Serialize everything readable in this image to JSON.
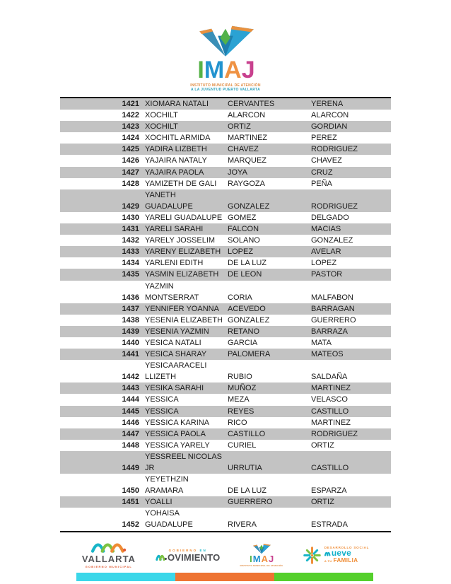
{
  "logo": {
    "letters": [
      {
        "char": "I",
        "color": "#56b247"
      },
      {
        "char": "M",
        "color": "#2293cf"
      },
      {
        "char": "A",
        "color": "#ef9243"
      },
      {
        "char": "J",
        "color": "#c8418e"
      }
    ],
    "caption_line1": "INSTITUTO MUNICIPAL DE ATENCIÓN",
    "caption_line2": "A LA JUVENTUD PUERTO VALLARTA"
  },
  "table": {
    "rows": [
      {
        "id": "1421",
        "name": "XIOMARA NATALI",
        "paternal": "CERVANTES",
        "maternal": "YERENA"
      },
      {
        "id": "1422",
        "name": "XOCHILT",
        "paternal": "ALARCON",
        "maternal": "ALARCON"
      },
      {
        "id": "1423",
        "name": "XOCHILT",
        "paternal": "ORTIZ",
        "maternal": "GORDIAN"
      },
      {
        "id": "1424",
        "name": "XOCHITL ARMIDA",
        "paternal": "MARTINEZ",
        "maternal": "PEREZ"
      },
      {
        "id": "1425",
        "name": "YADIRA LIZBETH",
        "paternal": "CHAVEZ",
        "maternal": "RODRIGUEZ"
      },
      {
        "id": "1426",
        "name": "YAJAIRA NATALY",
        "paternal": "MARQUEZ",
        "maternal": "CHAVEZ"
      },
      {
        "id": "1427",
        "name": "YAJAIRA PAOLA",
        "paternal": "JOYA",
        "maternal": "CRUZ"
      },
      {
        "id": "1428",
        "name": "YAMIZETH DE GALI",
        "paternal": "RAYGOZA",
        "maternal": "PEÑA"
      },
      {
        "id": "1429",
        "name": "YANETH\nGUADALUPE",
        "paternal": "GONZALEZ",
        "maternal": "RODRIGUEZ"
      },
      {
        "id": "1430",
        "name": "YARELI GUADALUPE",
        "paternal": "GOMEZ",
        "maternal": "DELGADO"
      },
      {
        "id": "1431",
        "name": "YARELI SARAHI",
        "paternal": "FALCON",
        "maternal": "MACIAS"
      },
      {
        "id": "1432",
        "name": "YARELY JOSSELIM",
        "paternal": "SOLANO",
        "maternal": "GONZALEZ"
      },
      {
        "id": "1433",
        "name": "YARENY ELIZABETH",
        "paternal": "LOPEZ",
        "maternal": "AVELAR"
      },
      {
        "id": "1434",
        "name": "YARLENI EDITH",
        "paternal": "DE LA LUZ",
        "maternal": "LOPEZ"
      },
      {
        "id": "1435",
        "name": "YASMIN ELIZABETH",
        "paternal": "DE LEON",
        "maternal": "PASTOR"
      },
      {
        "id": "1436",
        "name": "YAZMIN\nMONTSERRAT",
        "paternal": "CORIA",
        "maternal": "MALFABON"
      },
      {
        "id": "1437",
        "name": "YENNIFER YOANNA",
        "paternal": "ACEVEDO",
        "maternal": "BARRAGAN"
      },
      {
        "id": "1438",
        "name": "YESENIA ELIZABETH",
        "paternal": "GONZALEZ",
        "maternal": "GUERRERO"
      },
      {
        "id": "1439",
        "name": "YESENIA YAZMIN",
        "paternal": "RETANO",
        "maternal": "BARRAZA"
      },
      {
        "id": "1440",
        "name": "YESICA NATALI",
        "paternal": "GARCIA",
        "maternal": "MATA"
      },
      {
        "id": "1441",
        "name": "YESICA SHARAY",
        "paternal": "PALOMERA",
        "maternal": "MATEOS"
      },
      {
        "id": "1442",
        "name": "YESICAARACELI\nLLIZETH",
        "paternal": "RUBIO",
        "maternal": "SALDAÑA"
      },
      {
        "id": "1443",
        "name": "YESIKA SARAHI",
        "paternal": "MUÑOZ",
        "maternal": "MARTINEZ"
      },
      {
        "id": "1444",
        "name": "YESSICA",
        "paternal": "MEZA",
        "maternal": "VELASCO"
      },
      {
        "id": "1445",
        "name": "YESSICA",
        "paternal": "REYES",
        "maternal": "CASTILLO"
      },
      {
        "id": "1446",
        "name": "YESSICA KARINA",
        "paternal": "RICO",
        "maternal": "MARTINEZ"
      },
      {
        "id": "1447",
        "name": "YESSICA PAOLA",
        "paternal": "CASTILLO",
        "maternal": "RODRIGUEZ"
      },
      {
        "id": "1448",
        "name": "YESSICA YARELY",
        "paternal": "CURIEL",
        "maternal": "ORTIZ"
      },
      {
        "id": "1449",
        "name": "YESSREEL NICOLAS\nJR",
        "paternal": "URRUTIA",
        "maternal": "CASTILLO"
      },
      {
        "id": "1450",
        "name": "YEYETHZIN\nARAMARA",
        "paternal": "DE LA LUZ",
        "maternal": "ESPARZA"
      },
      {
        "id": "1451",
        "name": "YOALLI",
        "paternal": "GUERRERO",
        "maternal": "ORTIZ"
      },
      {
        "id": "1452",
        "name": "YOHAISA\nGUADALUPE",
        "paternal": "RIVERA",
        "maternal": "ESTRADA"
      }
    ]
  },
  "footer": {
    "vallarta": {
      "name": "VALLARTA",
      "subtitle": "GOBIERNO MUNICIPAL"
    },
    "movimiento": {
      "top1": "GOBIERNO",
      "top2": "EN",
      "word": "MOVIMIENTO"
    },
    "imaj_caption": "INSTITUTO MUNICIPAL DE ATENCIÓN",
    "desarrollo": {
      "top": "DESARROLLO SOCIAL",
      "word": "mueve",
      "small": "A TU",
      "family": "FAMILIA"
    },
    "bar_colors": [
      "#3bd7e9",
      "#ee7433",
      "#55d02c"
    ],
    "shade_color": "#c3c3c3"
  }
}
